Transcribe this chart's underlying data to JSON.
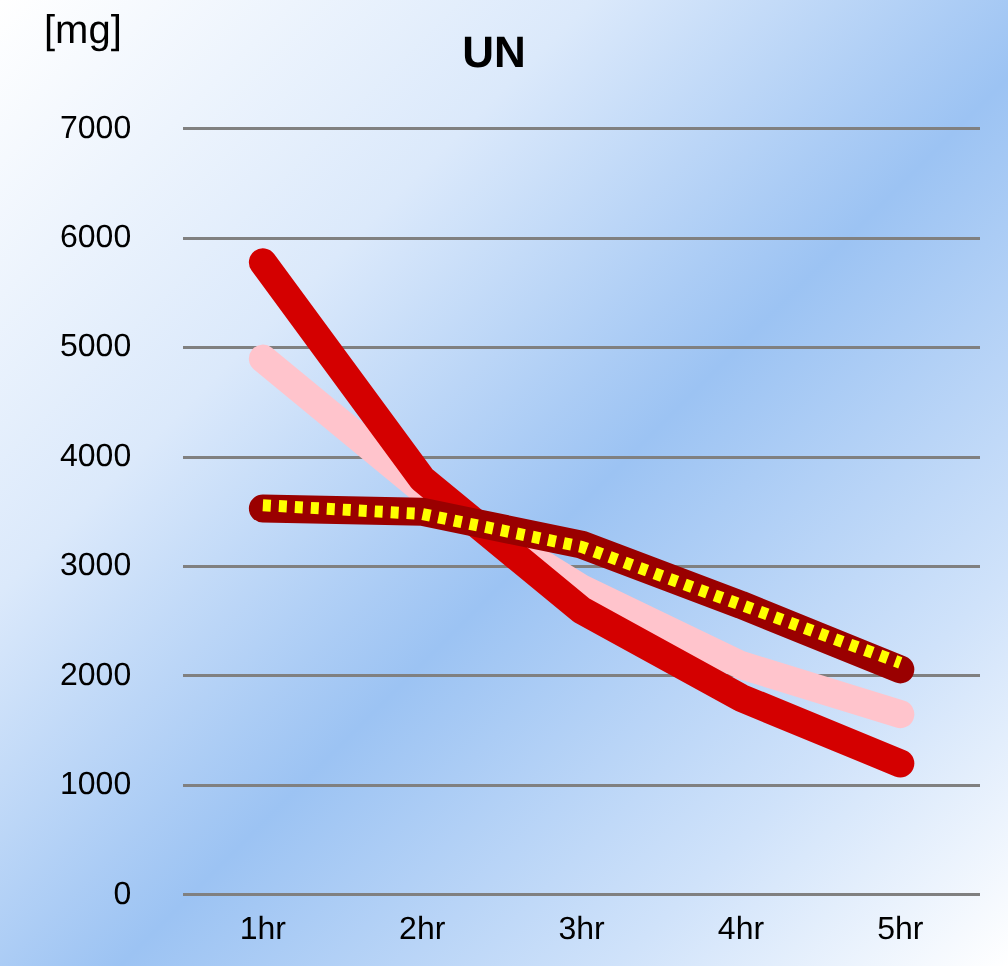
{
  "chart_data": {
    "type": "line",
    "title": "UN",
    "ylabel": "[mg]",
    "categories": [
      "1hr",
      "2hr",
      "3hr",
      "4hr",
      "5hr"
    ],
    "series": [
      {
        "color": "#ffc4cc",
        "values": [
          4900,
          3700,
          2800,
          2100,
          1650
        ]
      },
      {
        "color": "#d40000",
        "values": [
          5780,
          3800,
          2600,
          1800,
          1200
        ]
      },
      {
        "color": "#9a0000",
        "values": [
          3530,
          3500,
          3200,
          2650,
          2060
        ]
      },
      {
        "color": "#ffff00",
        "values": [
          3560,
          3480,
          3180,
          2650,
          2120
        ],
        "line_style": "dotted"
      }
    ],
    "ylim": [
      0,
      7000
    ],
    "yticks": [
      0,
      1000,
      2000,
      3000,
      4000,
      5000,
      6000,
      7000
    ],
    "grid": "y",
    "legend": false,
    "marker": "none"
  }
}
